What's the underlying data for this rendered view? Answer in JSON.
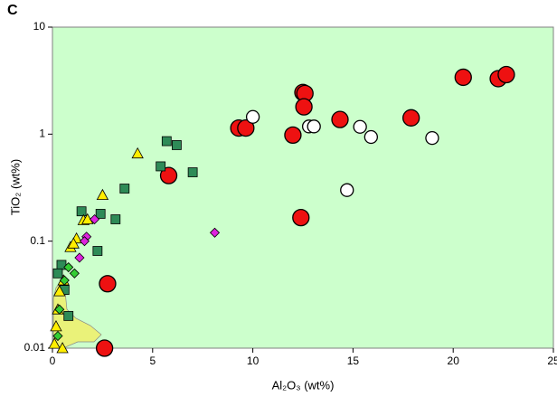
{
  "chart_data": {
    "type": "scatter",
    "title": "C",
    "xlabel": "Al₂O₃ (wt%)",
    "ylabel": "TiO₂ (wt%)",
    "xlim": [
      0,
      25
    ],
    "xticks": [
      0,
      5,
      10,
      15,
      20,
      25
    ],
    "ylim": [
      0.01,
      10
    ],
    "yticks": [
      0.01,
      0.1,
      1,
      10
    ],
    "yscale": "log",
    "background": "#ccffcc",
    "series": [
      {
        "marker": "circle",
        "filled": true,
        "color": "#ee1111",
        "x": [
          20.5,
          22.25,
          22.65,
          17.9,
          14.35,
          12.5,
          12.6,
          12.55,
          12.0,
          9.3,
          9.65,
          5.8,
          12.4,
          2.75,
          2.6
        ],
        "values": [
          3.4,
          3.3,
          3.6,
          1.42,
          1.37,
          2.45,
          2.4,
          1.8,
          0.98,
          1.14,
          1.14,
          0.41,
          0.166,
          0.04,
          0.01
        ]
      },
      {
        "marker": "circle",
        "filled": false,
        "color": "#ffffff",
        "x": [
          10.0,
          12.8,
          13.05,
          15.35,
          15.9,
          18.95,
          14.7
        ],
        "values": [
          1.45,
          1.18,
          1.18,
          1.17,
          0.94,
          0.92,
          0.3
        ]
      },
      {
        "marker": "square",
        "color": "#2e8b57",
        "x": [
          5.7,
          6.2,
          7.0,
          5.4,
          3.6,
          3.15,
          2.4,
          2.25,
          1.45,
          0.45,
          0.27,
          0.8,
          0.6
        ],
        "values": [
          0.86,
          0.79,
          0.44,
          0.5,
          0.31,
          0.16,
          0.18,
          0.081,
          0.19,
          0.06,
          0.05,
          0.02,
          0.035
        ]
      },
      {
        "marker": "triangle",
        "color": "#ffee00",
        "x": [
          4.25,
          2.5,
          1.55,
          1.75,
          1.2,
          0.9,
          1.05,
          0.55,
          0.35,
          0.27,
          0.18,
          0.1,
          0.5
        ],
        "values": [
          0.66,
          0.27,
          0.157,
          0.16,
          0.106,
          0.088,
          0.095,
          0.043,
          0.034,
          0.023,
          0.016,
          0.011,
          0.01
        ]
      },
      {
        "marker": "diamond",
        "color": "#33cc33",
        "x": [
          1.1,
          0.8,
          0.6,
          0.35,
          0.27
        ],
        "values": [
          0.05,
          0.057,
          0.043,
          0.023,
          0.013
        ]
      },
      {
        "marker": "diamond",
        "color": "#dd22dd",
        "x": [
          8.1,
          2.1,
          1.7,
          1.6,
          1.35
        ],
        "values": [
          0.12,
          0.16,
          0.11,
          0.1,
          0.07
        ]
      }
    ]
  }
}
